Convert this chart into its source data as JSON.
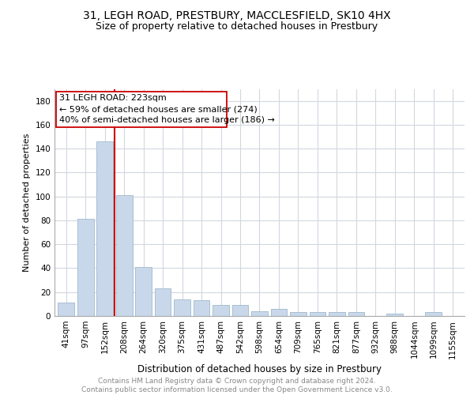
{
  "title_line1": "31, LEGH ROAD, PRESTBURY, MACCLESFIELD, SK10 4HX",
  "title_line2": "Size of property relative to detached houses in Prestbury",
  "xlabel": "Distribution of detached houses by size in Prestbury",
  "ylabel": "Number of detached properties",
  "footer": "Contains HM Land Registry data © Crown copyright and database right 2024.\nContains public sector information licensed under the Open Government Licence v3.0.",
  "categories": [
    "41sqm",
    "97sqm",
    "152sqm",
    "208sqm",
    "264sqm",
    "320sqm",
    "375sqm",
    "431sqm",
    "487sqm",
    "542sqm",
    "598sqm",
    "654sqm",
    "709sqm",
    "765sqm",
    "821sqm",
    "877sqm",
    "932sqm",
    "988sqm",
    "1044sqm",
    "1099sqm",
    "1155sqm"
  ],
  "values": [
    11,
    81,
    146,
    101,
    41,
    23,
    14,
    13,
    9,
    9,
    4,
    6,
    3,
    3,
    3,
    3,
    0,
    2,
    0,
    3,
    0
  ],
  "bar_color": "#c8d8ea",
  "bar_edge_color": "#a0b8cc",
  "vline_position": 2.5,
  "vline_color": "#cc0000",
  "annotation_box_text": "31 LEGH ROAD: 223sqm\n← 59% of detached houses are smaller (274)\n40% of semi-detached houses are larger (186) →",
  "ylim": [
    0,
    190
  ],
  "yticks": [
    0,
    20,
    40,
    60,
    80,
    100,
    120,
    140,
    160,
    180
  ],
  "background_color": "#ffffff",
  "grid_color": "#d0d8e0",
  "title_fontsize": 10,
  "subtitle_fontsize": 9,
  "ylabel_fontsize": 8,
  "xlabel_fontsize": 8.5,
  "annotation_fontsize": 8,
  "tick_fontsize": 7.5,
  "footer_fontsize": 6.5,
  "footer_color": "#888888"
}
